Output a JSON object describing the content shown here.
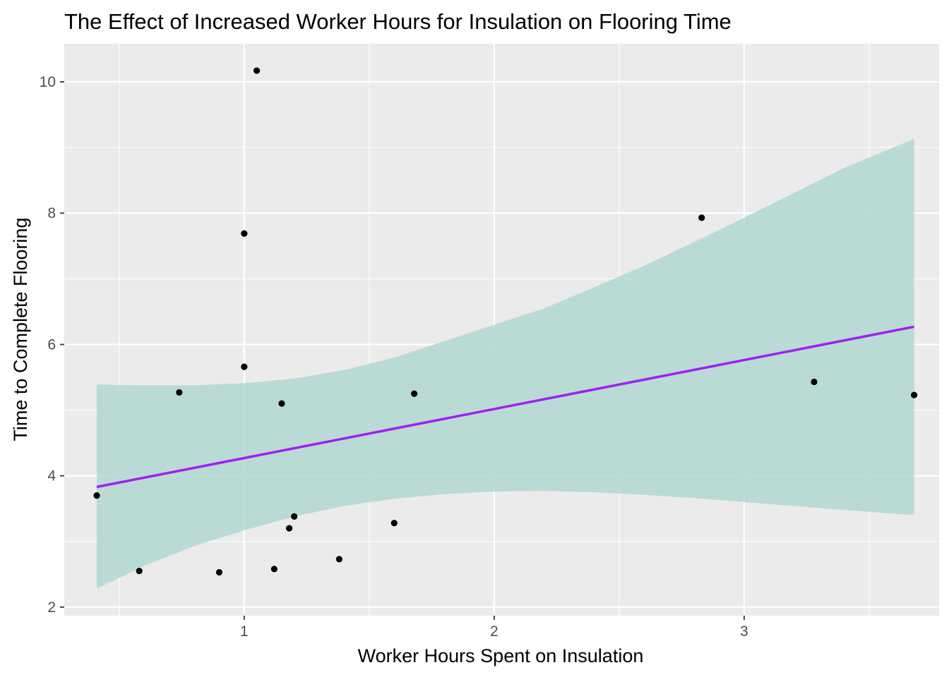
{
  "chart_data": {
    "type": "scatter",
    "title": "The Effect of Increased Worker Hours for Insulation on Flooring Time",
    "xlabel": "Worker Hours Spent on Insulation",
    "ylabel": "Time to Complete Flooring",
    "xlim": [
      0.28,
      3.78
    ],
    "ylim": [
      1.87,
      10.58
    ],
    "x_ticks": [
      1,
      2,
      3
    ],
    "y_ticks": [
      2,
      4,
      6,
      8,
      10
    ],
    "x_minor_ticks": [
      0.5,
      1.5,
      2.5,
      3.5
    ],
    "y_minor_ticks": [
      3,
      5,
      7,
      9
    ],
    "grid": true,
    "legend": "none",
    "colors": {
      "panel_background": "#ebebeb",
      "grid": "#ffffff",
      "points": "#000000",
      "fit_line": "#a020f0",
      "confidence_band": "#b2d8d1",
      "tick_label": "#4d4d4d",
      "tick_mark": "#333333"
    },
    "points": [
      {
        "x": 0.41,
        "y": 3.7
      },
      {
        "x": 0.58,
        "y": 2.55
      },
      {
        "x": 0.74,
        "y": 5.27
      },
      {
        "x": 0.9,
        "y": 2.53
      },
      {
        "x": 1.0,
        "y": 7.69
      },
      {
        "x": 1.0,
        "y": 5.66
      },
      {
        "x": 1.05,
        "y": 10.17
      },
      {
        "x": 1.12,
        "y": 2.58
      },
      {
        "x": 1.15,
        "y": 5.1
      },
      {
        "x": 1.18,
        "y": 3.2
      },
      {
        "x": 1.2,
        "y": 3.38
      },
      {
        "x": 1.38,
        "y": 2.73
      },
      {
        "x": 1.6,
        "y": 3.28
      },
      {
        "x": 1.68,
        "y": 5.25
      },
      {
        "x": 2.83,
        "y": 7.93
      },
      {
        "x": 3.28,
        "y": 5.43
      },
      {
        "x": 3.68,
        "y": 5.23
      }
    ],
    "fit_line": {
      "x": [
        0.41,
        3.68
      ],
      "y": [
        3.83,
        6.27
      ]
    },
    "confidence_band": {
      "x": [
        0.41,
        0.6,
        0.8,
        1.0,
        1.2,
        1.4,
        1.6,
        1.8,
        2.0,
        2.2,
        2.4,
        2.6,
        2.8,
        3.0,
        3.2,
        3.4,
        3.68
      ],
      "lower": [
        2.28,
        2.63,
        2.93,
        3.17,
        3.38,
        3.54,
        3.65,
        3.72,
        3.76,
        3.77,
        3.75,
        3.71,
        3.66,
        3.6,
        3.54,
        3.48,
        3.4
      ],
      "upper": [
        5.39,
        5.38,
        5.38,
        5.41,
        5.48,
        5.61,
        5.8,
        6.05,
        6.3,
        6.55,
        6.87,
        7.2,
        7.56,
        7.93,
        8.31,
        8.69,
        9.13
      ]
    }
  }
}
